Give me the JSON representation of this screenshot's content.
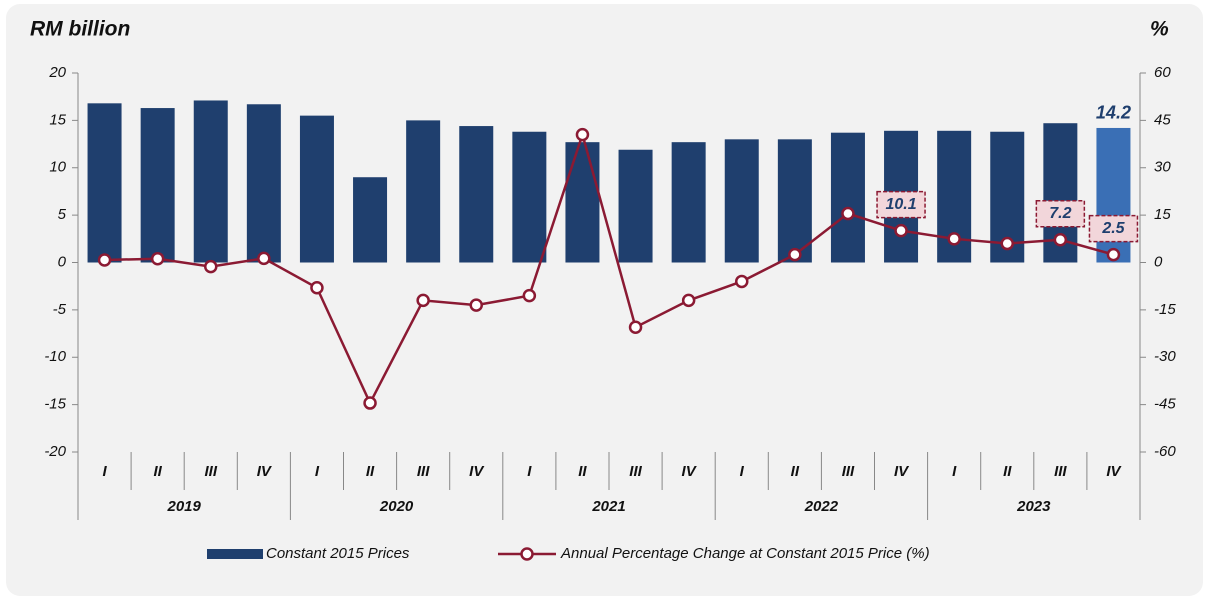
{
  "chart_data": {
    "type": "bar-line",
    "y_axis_label": "RM billion",
    "y2_axis_label": "%",
    "categories": [
      "I",
      "II",
      "III",
      "IV",
      "I",
      "II",
      "III",
      "IV",
      "I",
      "II",
      "III",
      "IV",
      "I",
      "II",
      "III",
      "IV",
      "I",
      "II",
      "III",
      "IV"
    ],
    "category_groups": [
      "2019",
      "2020",
      "2021",
      "2022",
      "2023"
    ],
    "ylim": [
      -20,
      20
    ],
    "yticks": [
      -20,
      -15,
      -10,
      -5,
      0,
      5,
      10,
      15,
      20
    ],
    "y2lim": [
      -60,
      60
    ],
    "y2ticks": [
      -60,
      -45,
      -30,
      -15,
      0,
      15,
      30,
      45,
      60
    ],
    "series": [
      {
        "name": "Constant 2015 Prices",
        "type": "bar",
        "color": "#1f3f6e",
        "highlight_color": "#3a6fb5",
        "highlight_index": 19,
        "labeled_points": [
          19
        ],
        "values": [
          16.8,
          16.3,
          17.1,
          16.7,
          15.5,
          9.0,
          15.0,
          14.4,
          13.8,
          12.7,
          11.9,
          12.7,
          13.0,
          13.0,
          13.7,
          13.9,
          13.9,
          13.8,
          14.7,
          14.2
        ]
      },
      {
        "name": "Annual Percentage Change at Constant 2015 Price (%)",
        "type": "line",
        "axis": "y2",
        "color": "#8b1a33",
        "labeled_points": [
          15,
          18,
          19
        ],
        "values": [
          0.8,
          1.2,
          -1.3,
          1.3,
          -8.0,
          -44.5,
          -12.0,
          -13.5,
          -10.5,
          40.5,
          -20.5,
          -12.0,
          -6.0,
          2.5,
          15.5,
          10.1,
          7.5,
          6.0,
          7.2,
          2.5
        ]
      }
    ]
  }
}
